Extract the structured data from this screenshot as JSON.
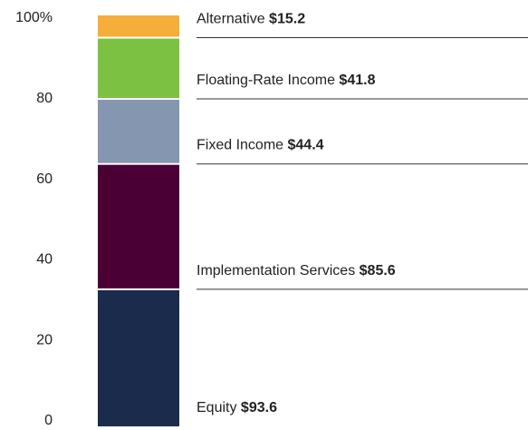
{
  "chart_data": {
    "type": "bar",
    "stacked": "percent",
    "ylim": [
      0,
      100
    ],
    "yticks": [
      0,
      20,
      40,
      60,
      80,
      {
        "value": 100,
        "label": "100%"
      }
    ],
    "series": [
      {
        "name": "Equity",
        "color": "#1b2b4b",
        "values": [
          93.6
        ],
        "value_labels": [
          "$93.6"
        ]
      },
      {
        "name": "Implementation Services",
        "color": "#4a0033",
        "values": [
          85.6
        ],
        "value_labels": [
          "$85.6"
        ]
      },
      {
        "name": "Fixed Income",
        "color": "#8496b0",
        "values": [
          44.4
        ],
        "value_labels": [
          "$44.4"
        ]
      },
      {
        "name": "Floating-Rate Income",
        "color": "#7dc143",
        "values": [
          41.8
        ],
        "value_labels": [
          "$41.8"
        ]
      },
      {
        "name": "Alternative",
        "color": "#f5ae3a",
        "values": [
          15.2
        ],
        "value_labels": [
          "$15.2"
        ]
      }
    ]
  }
}
